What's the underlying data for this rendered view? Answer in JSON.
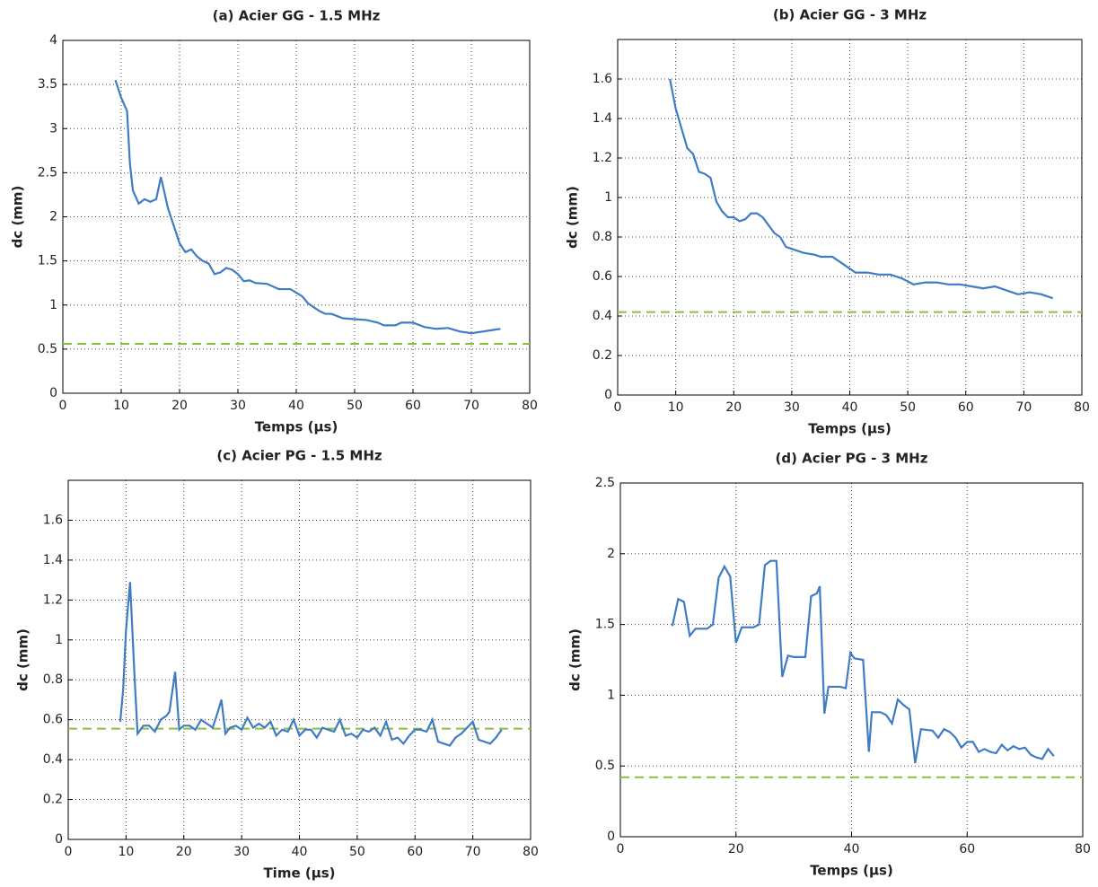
{
  "chart_data": [
    {
      "type": "line",
      "title": "(a) Acier GG - 1.5 MHz",
      "x_label": "Temps (µs)",
      "y_label": "dc (mm)",
      "color": "#3f7cc4",
      "grid": true,
      "xlim": [
        0,
        80
      ],
      "xticks": [
        0,
        10,
        20,
        30,
        40,
        50,
        60,
        70,
        80
      ],
      "ylim": [
        0,
        4
      ],
      "yticks": [
        0,
        0.5,
        1,
        1.5,
        2,
        2.5,
        3,
        3.5,
        4
      ],
      "reference_line": {
        "value": 0.56,
        "color": "#8cbf3f",
        "dashed": true
      },
      "x": [
        9,
        10,
        11,
        11.5,
        12,
        13,
        14,
        15,
        16,
        16.8,
        17.5,
        18,
        19,
        20,
        21,
        22,
        23,
        24,
        25,
        26,
        27,
        28,
        29,
        30,
        31,
        32,
        33,
        35,
        37,
        39,
        41,
        42,
        44,
        45,
        46,
        48,
        50,
        52,
        54,
        55,
        57,
        58,
        60,
        62,
        64,
        66,
        68,
        70,
        72,
        74,
        75
      ],
      "values": [
        3.55,
        3.35,
        3.2,
        2.6,
        2.3,
        2.15,
        2.2,
        2.17,
        2.2,
        2.45,
        2.25,
        2.1,
        1.9,
        1.7,
        1.6,
        1.63,
        1.55,
        1.5,
        1.47,
        1.35,
        1.37,
        1.42,
        1.4,
        1.35,
        1.27,
        1.28,
        1.25,
        1.24,
        1.18,
        1.18,
        1.1,
        1.02,
        0.93,
        0.9,
        0.9,
        0.85,
        0.84,
        0.83,
        0.8,
        0.77,
        0.77,
        0.8,
        0.8,
        0.75,
        0.73,
        0.74,
        0.7,
        0.68,
        0.7,
        0.72,
        0.73
      ]
    },
    {
      "type": "line",
      "title": "(b) Acier GG - 3 MHz",
      "x_label": "Temps (µs)",
      "y_label": "dc (mm)",
      "color": "#3f7cc4",
      "grid": true,
      "xlim": [
        0,
        80
      ],
      "xticks": [
        0,
        10,
        20,
        30,
        40,
        50,
        60,
        70,
        80
      ],
      "ylim": [
        0,
        1.8
      ],
      "yticks": [
        0,
        0.2,
        0.4,
        0.6,
        0.8,
        1,
        1.2,
        1.4,
        1.6
      ],
      "reference_line": {
        "value": 0.42,
        "color": "#8cbf3f",
        "dashed": true
      },
      "x": [
        9,
        10,
        11,
        12,
        13,
        14,
        15,
        16,
        17,
        18,
        19,
        20,
        21,
        22,
        23,
        24,
        25,
        26,
        27,
        28,
        29,
        30,
        32,
        34,
        35,
        37,
        39,
        41,
        43,
        45,
        47,
        49,
        51,
        53,
        55,
        57,
        59,
        61,
        63,
        65,
        67,
        69,
        71,
        73,
        75
      ],
      "values": [
        1.6,
        1.45,
        1.35,
        1.25,
        1.22,
        1.13,
        1.12,
        1.1,
        0.98,
        0.93,
        0.9,
        0.9,
        0.88,
        0.89,
        0.92,
        0.92,
        0.9,
        0.86,
        0.82,
        0.8,
        0.75,
        0.74,
        0.72,
        0.71,
        0.7,
        0.7,
        0.66,
        0.62,
        0.62,
        0.61,
        0.61,
        0.59,
        0.56,
        0.57,
        0.57,
        0.56,
        0.56,
        0.55,
        0.54,
        0.55,
        0.53,
        0.51,
        0.52,
        0.51,
        0.49
      ]
    },
    {
      "type": "line",
      "title": "(c) Acier PG - 1.5 MHz",
      "x_label": "Time (µs)",
      "y_label": "dc (mm)",
      "color": "#3f7cc4",
      "grid": true,
      "xlim": [
        0,
        80
      ],
      "xticks": [
        0,
        10,
        20,
        30,
        40,
        50,
        60,
        70,
        80
      ],
      "ylim": [
        0,
        1.8
      ],
      "yticks": [
        0,
        0.2,
        0.4,
        0.6,
        0.8,
        1,
        1.2,
        1.4,
        1.6
      ],
      "reference_line": {
        "value": 0.555,
        "color": "#8cbf3f",
        "dashed": true
      },
      "x": [
        9,
        9.5,
        10,
        10.7,
        11.5,
        12,
        13,
        14,
        15,
        16,
        17,
        17.5,
        18.5,
        19.2,
        20,
        21,
        22,
        23,
        24,
        25,
        26,
        26.5,
        27.2,
        28,
        29,
        30,
        31,
        32,
        33,
        34,
        35,
        36,
        37,
        38,
        39,
        40,
        41,
        42,
        43,
        44,
        45,
        46,
        47,
        48,
        49,
        50,
        51,
        52,
        53,
        54,
        55,
        56,
        57,
        58,
        59,
        60,
        61,
        62,
        63,
        64,
        65,
        66,
        67,
        68,
        69,
        70,
        71,
        72,
        73,
        74,
        75
      ],
      "values": [
        0.59,
        0.75,
        1.05,
        1.29,
        0.8,
        0.53,
        0.57,
        0.57,
        0.54,
        0.6,
        0.62,
        0.64,
        0.84,
        0.55,
        0.57,
        0.57,
        0.55,
        0.6,
        0.58,
        0.56,
        0.65,
        0.7,
        0.53,
        0.56,
        0.57,
        0.55,
        0.61,
        0.56,
        0.58,
        0.56,
        0.59,
        0.52,
        0.55,
        0.54,
        0.6,
        0.52,
        0.55,
        0.55,
        0.51,
        0.56,
        0.55,
        0.54,
        0.6,
        0.52,
        0.53,
        0.51,
        0.55,
        0.54,
        0.56,
        0.52,
        0.59,
        0.5,
        0.51,
        0.48,
        0.52,
        0.55,
        0.55,
        0.54,
        0.6,
        0.49,
        0.48,
        0.47,
        0.51,
        0.53,
        0.56,
        0.59,
        0.5,
        0.49,
        0.48,
        0.51,
        0.55
      ]
    },
    {
      "type": "line",
      "title": "(d) Acier PG - 3 MHz",
      "x_label": "Temps (µs)",
      "y_label": "dc (mm)",
      "color": "#3f7cc4",
      "grid": true,
      "xlim": [
        0,
        80
      ],
      "xticks": [
        0,
        20,
        40,
        60,
        80
      ],
      "ylim": [
        0,
        2.5
      ],
      "yticks": [
        0,
        0.5,
        1,
        1.5,
        2,
        2.5
      ],
      "reference_line": {
        "value": 0.42,
        "color": "#8cbf3f",
        "dashed": true
      },
      "x": [
        9,
        10,
        11,
        12,
        13,
        15,
        16,
        17,
        18,
        19,
        20,
        21,
        22,
        23,
        24,
        25,
        26,
        27,
        28,
        29,
        30,
        31,
        32,
        33,
        34,
        34.5,
        35.3,
        36,
        38,
        39,
        39.8,
        40.5,
        42,
        43,
        43.5,
        45,
        46,
        47,
        48,
        49,
        50,
        51,
        52,
        54,
        55,
        56,
        57,
        58,
        59,
        60,
        61,
        62,
        63,
        64,
        65,
        66,
        67,
        68,
        69,
        70,
        71,
        72,
        73,
        74,
        75
      ],
      "values": [
        1.49,
        1.68,
        1.66,
        1.42,
        1.47,
        1.47,
        1.5,
        1.83,
        1.91,
        1.84,
        1.37,
        1.48,
        1.48,
        1.48,
        1.5,
        1.92,
        1.95,
        1.95,
        1.13,
        1.28,
        1.27,
        1.27,
        1.27,
        1.7,
        1.72,
        1.77,
        0.87,
        1.06,
        1.06,
        1.05,
        1.3,
        1.26,
        1.25,
        0.6,
        0.88,
        0.88,
        0.86,
        0.8,
        0.97,
        0.93,
        0.9,
        0.52,
        0.76,
        0.75,
        0.7,
        0.76,
        0.74,
        0.7,
        0.63,
        0.67,
        0.67,
        0.6,
        0.62,
        0.6,
        0.59,
        0.65,
        0.61,
        0.64,
        0.62,
        0.63,
        0.58,
        0.56,
        0.55,
        0.62,
        0.57
      ]
    }
  ]
}
